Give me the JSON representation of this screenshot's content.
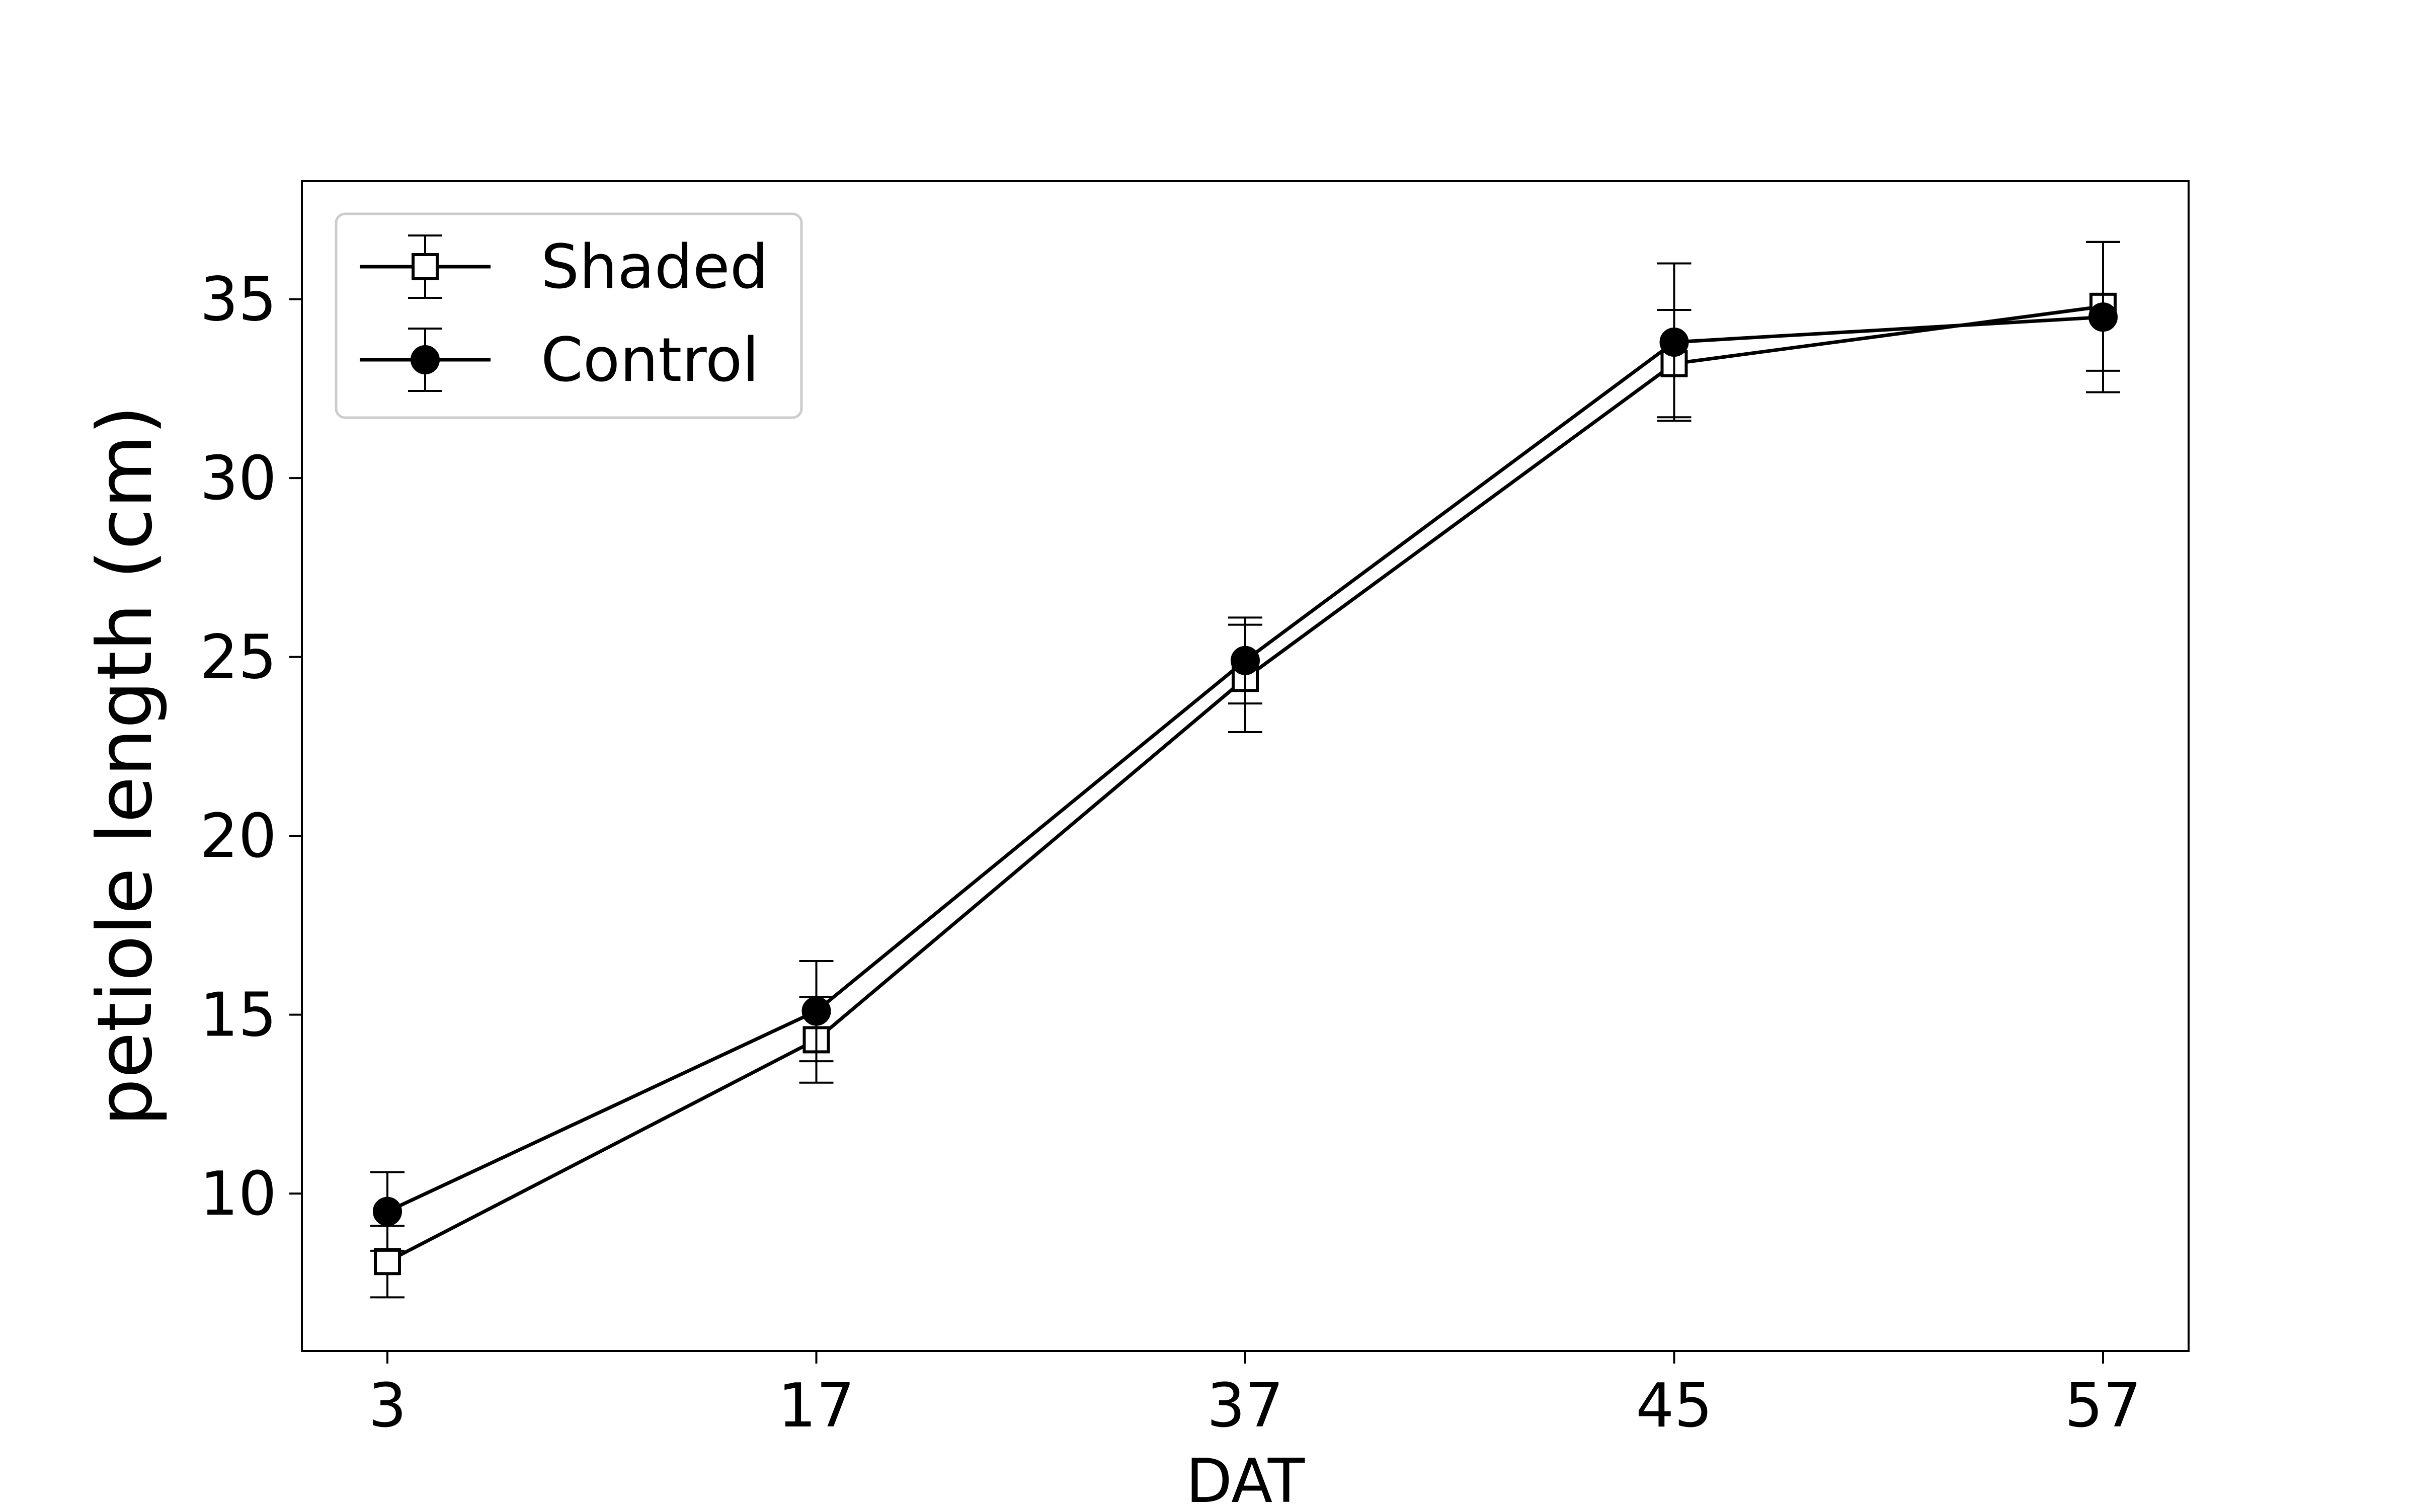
{
  "chart_data": {
    "type": "line",
    "title": "",
    "xlabel": "DAT",
    "ylabel": "petiole length (cm)",
    "categories": [
      "3",
      "17",
      "37",
      "45",
      "57"
    ],
    "yticks": [
      10,
      15,
      20,
      25,
      30,
      35
    ],
    "ylim": [
      5.6,
      38.3
    ],
    "grid": false,
    "legend_position": "top-left",
    "series": [
      {
        "name": "Shaded",
        "marker": "square-open",
        "color": "#000000",
        "values": [
          8.1,
          14.3,
          24.4,
          33.2,
          34.8
        ],
        "errors": [
          1.0,
          1.2,
          1.5,
          1.5,
          1.8
        ]
      },
      {
        "name": "Control",
        "marker": "circle-filled",
        "color": "#000000",
        "values": [
          9.5,
          15.1,
          24.9,
          33.8,
          34.5
        ],
        "errors": [
          1.1,
          1.4,
          1.2,
          2.2,
          2.1
        ]
      }
    ]
  }
}
